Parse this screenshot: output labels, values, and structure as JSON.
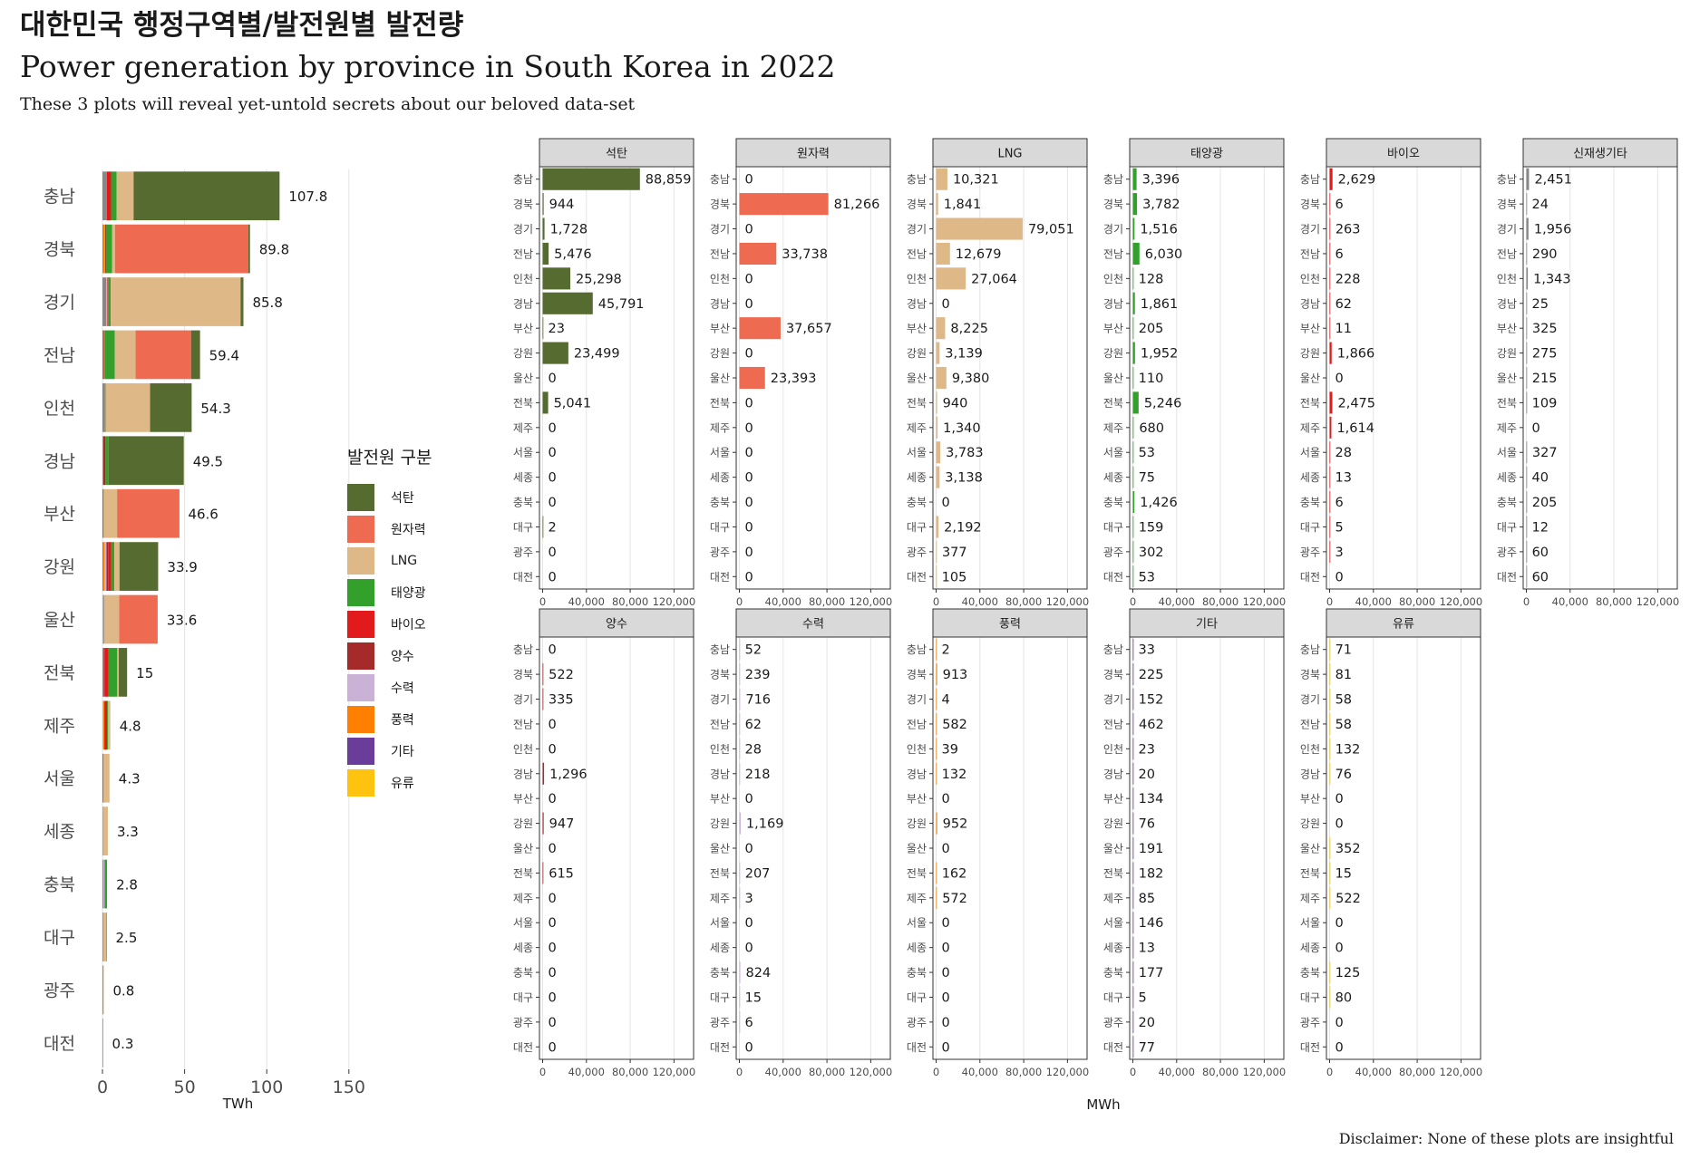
{
  "title_ko": "대한민국 행정구역별/발전원별 발전량",
  "title_en": "Power generation by province in South Korea in 2022",
  "subtitle": "These 3 plots will reveal yet-untold secrets about our beloved data-set",
  "caption": "Disclaimer: None of these plots are insightful",
  "legend_title": "발전원 구분",
  "sources": [
    {
      "name": "석탄",
      "color": "#556b2f"
    },
    {
      "name": "원자력",
      "color": "#ee6a50"
    },
    {
      "name": "LNG",
      "color": "#deb887"
    },
    {
      "name": "태양광",
      "color": "#33a02c"
    },
    {
      "name": "바이오",
      "color": "#e31a1c"
    },
    {
      "name": "양수",
      "color": "#a52a2a"
    },
    {
      "name": "수력",
      "color": "#cab2d6"
    },
    {
      "name": "풍력",
      "color": "#ff7f00"
    },
    {
      "name": "기타",
      "color": "#6a3d9a"
    },
    {
      "name": "유류",
      "color": "#ffc20e"
    }
  ],
  "chart_data": [
    {
      "type": "bar",
      "orientation": "horizontal",
      "stacked": true,
      "categories": [
        "충남",
        "경북",
        "경기",
        "전남",
        "인천",
        "경남",
        "부산",
        "강원",
        "울산",
        "전북",
        "제주",
        "서울",
        "세종",
        "충북",
        "대구",
        "광주",
        "대전"
      ],
      "totals": [
        "107.8",
        "89.8",
        "85.8",
        "59.4",
        "54.3",
        "49.5",
        "46.6",
        "33.9",
        "33.6",
        "15",
        "4.8",
        "4.3",
        "3.3",
        "2.8",
        "2.5",
        "0.8",
        "0.3"
      ],
      "xlabel": "TWh",
      "xticks": [
        "0",
        "50",
        "100",
        "150"
      ],
      "xlim": [
        0,
        165
      ],
      "grid": true
    },
    {
      "type": "bar",
      "orientation": "horizontal",
      "faceted": true,
      "categories": [
        "충남",
        "경북",
        "경기",
        "전남",
        "인천",
        "경남",
        "부산",
        "강원",
        "울산",
        "전북",
        "제주",
        "서울",
        "세종",
        "충북",
        "대구",
        "광주",
        "대전"
      ],
      "xlabel": "MWh",
      "xticks": [
        "0",
        "40,000",
        "80,000",
        "120,000"
      ],
      "xlim": [
        0,
        135000
      ],
      "grid": true,
      "facets": [
        {
          "name": "석탄",
          "values": [
            88859,
            944,
            1728,
            5476,
            25298,
            45791,
            23,
            23499,
            0,
            5041,
            0,
            0,
            0,
            0,
            2,
            0,
            0
          ]
        },
        {
          "name": "원자력",
          "values": [
            0,
            81266,
            0,
            33738,
            0,
            0,
            37657,
            0,
            23393,
            0,
            0,
            0,
            0,
            0,
            0,
            0,
            0
          ]
        },
        {
          "name": "LNG",
          "values": [
            10321,
            1841,
            79051,
            12679,
            27064,
            0,
            8225,
            3139,
            9380,
            940,
            1340,
            3783,
            3138,
            0,
            2192,
            377,
            105
          ]
        },
        {
          "name": "태양광",
          "values": [
            3396,
            3782,
            1516,
            6030,
            128,
            1861,
            205,
            1952,
            110,
            5246,
            680,
            53,
            75,
            1426,
            159,
            302,
            53
          ]
        },
        {
          "name": "바이오",
          "values": [
            2629,
            6,
            263,
            6,
            228,
            62,
            11,
            1866,
            0,
            2475,
            1614,
            28,
            13,
            6,
            5,
            3,
            0
          ]
        },
        {
          "name": "신재생기타",
          "values": [
            2451,
            24,
            1956,
            290,
            1343,
            25,
            325,
            275,
            215,
            109,
            0,
            327,
            40,
            205,
            12,
            60,
            60
          ]
        },
        {
          "name": "양수",
          "values": [
            0,
            522,
            335,
            0,
            0,
            1296,
            0,
            947,
            0,
            615,
            0,
            0,
            0,
            0,
            0,
            0,
            0
          ]
        },
        {
          "name": "수력",
          "values": [
            52,
            239,
            716,
            62,
            28,
            218,
            0,
            1169,
            0,
            207,
            3,
            0,
            0,
            824,
            15,
            6,
            0
          ]
        },
        {
          "name": "풍력",
          "values": [
            2,
            913,
            4,
            582,
            39,
            132,
            0,
            952,
            0,
            162,
            572,
            0,
            0,
            0,
            0,
            0,
            0
          ]
        },
        {
          "name": "기타",
          "values": [
            33,
            225,
            152,
            462,
            23,
            20,
            134,
            76,
            191,
            182,
            85,
            146,
            13,
            177,
            5,
            20,
            77
          ]
        },
        {
          "name": "유류",
          "values": [
            71,
            81,
            58,
            58,
            132,
            76,
            0,
            0,
            352,
            15,
            522,
            0,
            0,
            125,
            80,
            0,
            0
          ]
        }
      ]
    }
  ]
}
